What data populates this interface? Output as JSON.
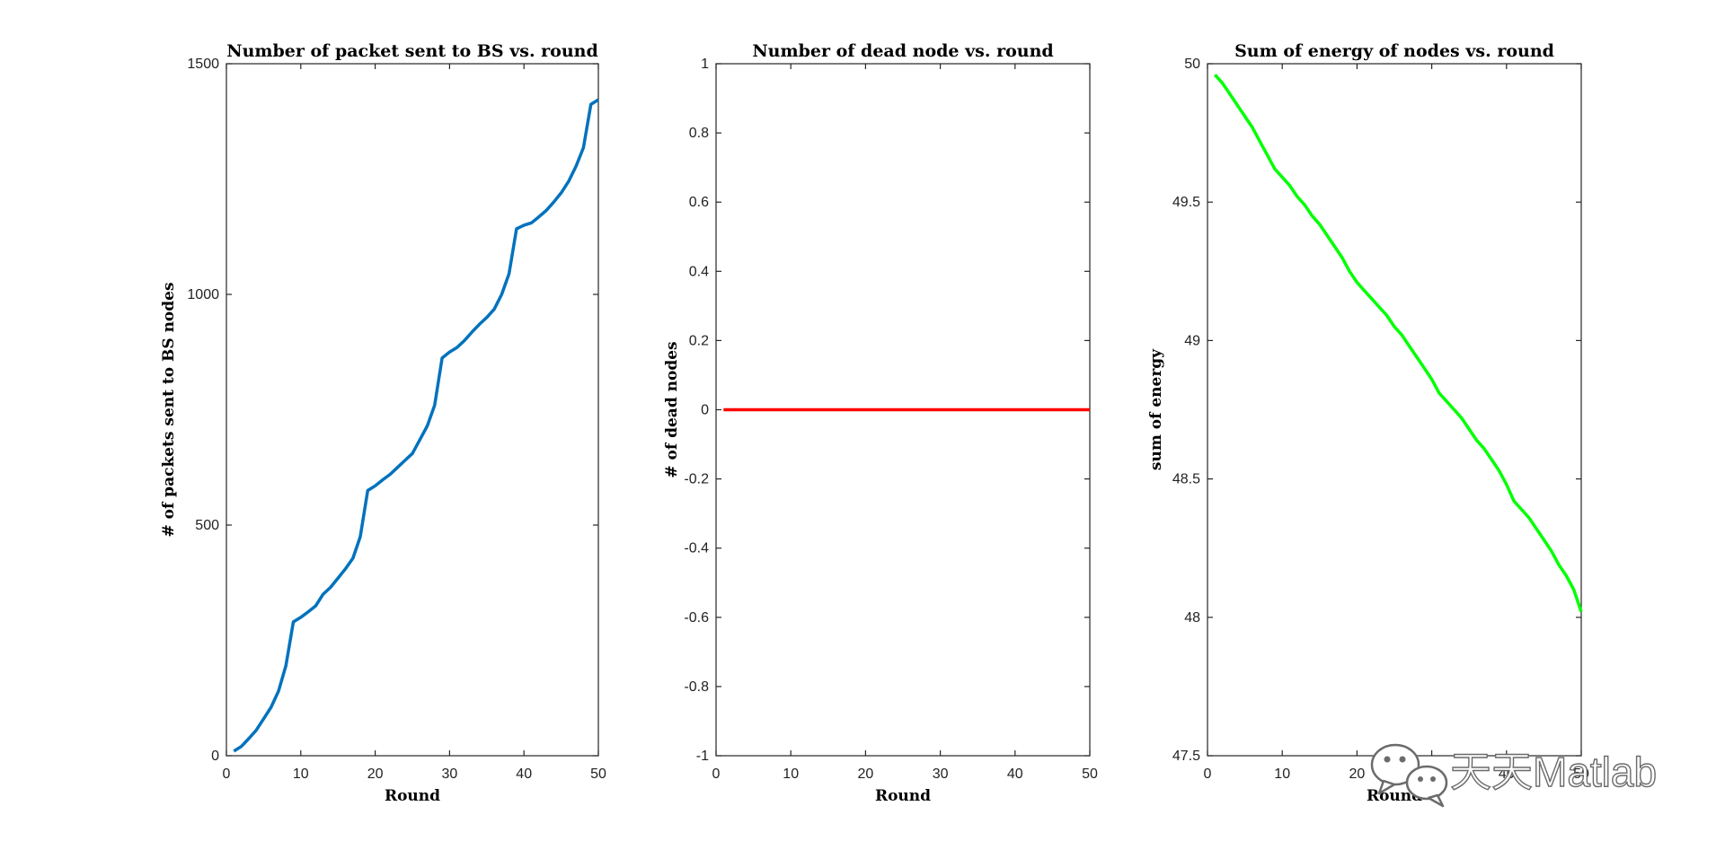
{
  "chart_data": [
    {
      "type": "line",
      "title": "Number of packet sent to BS vs. round",
      "xlabel": "Round",
      "ylabel": "# of packets sent to BS nodes",
      "xlim": [
        0,
        50
      ],
      "ylim": [
        0,
        1500
      ],
      "xticks": [
        "0",
        "10",
        "20",
        "30",
        "40",
        "50"
      ],
      "yticks": [
        "0",
        "500",
        "1000",
        "1500"
      ],
      "grid": false,
      "color": "#0072BD",
      "series": [
        {
          "x": [
            1,
            2,
            3,
            4,
            5,
            6,
            7,
            8,
            9,
            10,
            11,
            12,
            13,
            14,
            15,
            16,
            17,
            18,
            19,
            20,
            21,
            22,
            23,
            24,
            25,
            26,
            27,
            28,
            29,
            30,
            31,
            32,
            33,
            34,
            35,
            36,
            37,
            38,
            39,
            40,
            41,
            42,
            43,
            44,
            45,
            46,
            47,
            48,
            49,
            50
          ],
          "values": [
            10,
            20,
            37,
            55,
            80,
            105,
            140,
            195,
            290,
            300,
            312,
            325,
            350,
            365,
            385,
            405,
            428,
            475,
            575,
            585,
            598,
            610,
            625,
            640,
            655,
            685,
            715,
            760,
            862,
            875,
            885,
            900,
            918,
            935,
            950,
            968,
            1000,
            1045,
            1142,
            1150,
            1155,
            1168,
            1182,
            1200,
            1220,
            1245,
            1278,
            1318,
            1412,
            1422
          ]
        }
      ]
    },
    {
      "type": "line",
      "title": "Number of dead node vs. round",
      "xlabel": "Round",
      "ylabel": "# of dead nodes",
      "xlim": [
        0,
        50
      ],
      "ylim": [
        -1,
        1
      ],
      "xticks": [
        "0",
        "10",
        "20",
        "30",
        "40",
        "50"
      ],
      "yticks": [
        "-1",
        "-0.8",
        "-0.6",
        "-0.4",
        "-0.2",
        "0",
        "0.2",
        "0.4",
        "0.6",
        "0.8",
        "1"
      ],
      "grid": false,
      "color": "#ff0000",
      "series": [
        {
          "x": [
            1,
            2,
            3,
            4,
            5,
            6,
            7,
            8,
            9,
            10,
            11,
            12,
            13,
            14,
            15,
            16,
            17,
            18,
            19,
            20,
            21,
            22,
            23,
            24,
            25,
            26,
            27,
            28,
            29,
            30,
            31,
            32,
            33,
            34,
            35,
            36,
            37,
            38,
            39,
            40,
            41,
            42,
            43,
            44,
            45,
            46,
            47,
            48,
            49,
            50
          ],
          "values": [
            0,
            0,
            0,
            0,
            0,
            0,
            0,
            0,
            0,
            0,
            0,
            0,
            0,
            0,
            0,
            0,
            0,
            0,
            0,
            0,
            0,
            0,
            0,
            0,
            0,
            0,
            0,
            0,
            0,
            0,
            0,
            0,
            0,
            0,
            0,
            0,
            0,
            0,
            0,
            0,
            0,
            0,
            0,
            0,
            0,
            0,
            0,
            0,
            0,
            0
          ]
        }
      ]
    },
    {
      "type": "line",
      "title": "Sum of energy of nodes vs. round",
      "xlabel": "Round",
      "ylabel": "sum of energy",
      "xlim": [
        0,
        50
      ],
      "ylim": [
        47.5,
        50
      ],
      "xticks": [
        "0",
        "10",
        "20",
        "30",
        "40",
        "50"
      ],
      "yticks": [
        "47.5",
        "48",
        "48.5",
        "49",
        "49.5",
        "50"
      ],
      "grid": false,
      "color": "#00ff00",
      "series": [
        {
          "x": [
            1,
            2,
            3,
            4,
            5,
            6,
            7,
            8,
            9,
            10,
            11,
            12,
            13,
            14,
            15,
            16,
            17,
            18,
            19,
            20,
            21,
            22,
            23,
            24,
            25,
            26,
            27,
            28,
            29,
            30,
            31,
            32,
            33,
            34,
            35,
            36,
            37,
            38,
            39,
            40,
            41,
            42,
            43,
            44,
            45,
            46,
            47,
            48,
            49,
            50
          ],
          "values": [
            49.96,
            49.93,
            49.89,
            49.85,
            49.81,
            49.77,
            49.72,
            49.67,
            49.62,
            49.59,
            49.56,
            49.52,
            49.49,
            49.45,
            49.42,
            49.38,
            49.34,
            49.3,
            49.25,
            49.21,
            49.18,
            49.15,
            49.12,
            49.09,
            49.05,
            49.02,
            48.98,
            48.94,
            48.9,
            48.86,
            48.81,
            48.78,
            48.75,
            48.72,
            48.68,
            48.64,
            48.61,
            48.57,
            48.53,
            48.48,
            48.42,
            48.39,
            48.36,
            48.32,
            48.28,
            48.24,
            48.19,
            48.15,
            48.1,
            48.02
          ]
        }
      ]
    }
  ],
  "watermark": {
    "text": "天天Matlab",
    "icon": "wechat-icon"
  }
}
